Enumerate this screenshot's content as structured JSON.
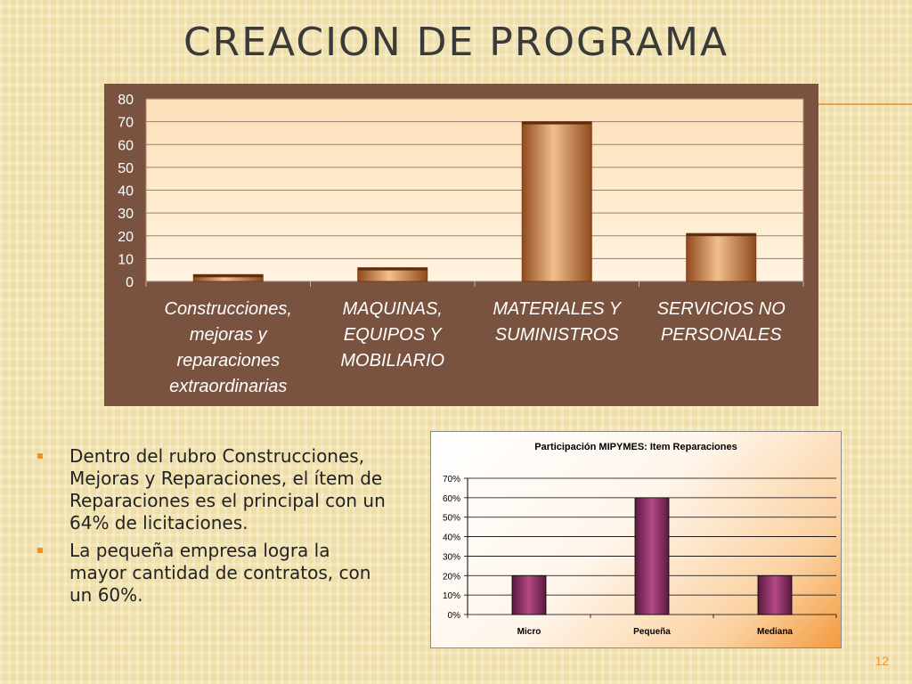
{
  "slide": {
    "title": "CREACION DE PROGRAMA",
    "page_number": "12",
    "bullets": [
      "Dentro del rubro Construcciones, Mejoras y Reparaciones, el ítem de Reparaciones es el principal con un 64% de licitaciones.",
      "La pequeña empresa logra la mayor cantidad de contratos, con un 60%."
    ]
  },
  "chart_data": [
    {
      "type": "bar",
      "title": "",
      "categories": [
        "Construcciones, mejoras y reparaciones extraordinarias",
        "MAQUINAS, EQUIPOS Y MOBILIARIO",
        "MATERIALES Y SUMINISTROS",
        "SERVICIOS NO PERSONALES"
      ],
      "category_lines": [
        [
          "Construcciones,",
          "mejoras y",
          "reparaciones",
          "extraordinarias"
        ],
        [
          "MAQUINAS,",
          "EQUIPOS Y",
          "MOBILIARIO"
        ],
        [
          "MATERIALES Y",
          "SUMINISTROS"
        ],
        [
          "SERVICIOS NO",
          "PERSONALES"
        ]
      ],
      "values": [
        3,
        6,
        70,
        21
      ],
      "ylim": [
        0,
        80
      ],
      "yticks": [
        "0",
        "10",
        "20",
        "30",
        "40",
        "50",
        "60",
        "70",
        "80"
      ],
      "grid": true,
      "colors": {
        "panel": "#7a5340",
        "plot_top": "#fde0b8",
        "plot_bottom": "#fff3e0",
        "bar_dark": "#8f4a1e",
        "bar_light": "#f2c08c"
      }
    },
    {
      "type": "bar",
      "title": "Participación MIPYMES: Item Reparaciones",
      "categories": [
        "Micro",
        "Pequeña",
        "Mediana"
      ],
      "values": [
        20,
        60,
        20
      ],
      "ylim": [
        0,
        70
      ],
      "yticks": [
        "0%",
        "10%",
        "20%",
        "30%",
        "40%",
        "50%",
        "60%",
        "70%"
      ],
      "grid": true,
      "colors": {
        "bar_dark": "#5a1a3e",
        "bar_light": "#b44a86"
      }
    }
  ]
}
